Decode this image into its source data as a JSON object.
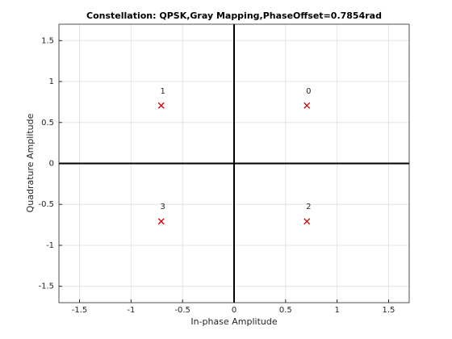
{
  "chart_data": {
    "type": "scatter",
    "title": "Constellation: QPSK,Gray Mapping,PhaseOffset=0.7854rad",
    "x_label": "In-phase Amplitude",
    "y_label": "Quadrature Amplitude",
    "x": [
      0.7071,
      -0.7071,
      0.7071,
      -0.7071
    ],
    "series": [
      {
        "color": "#cc0000",
        "values": [
          0.7071,
          0.7071,
          -0.7071,
          -0.7071
        ]
      }
    ],
    "point_labels": [
      "0",
      "1",
      "2",
      "3"
    ],
    "xlim": [
      -1.7,
      1.7
    ],
    "ylim": [
      -1.7,
      1.7
    ],
    "xticks": [
      -1.5,
      -1,
      -0.5,
      0,
      0.5,
      1,
      1.5
    ],
    "yticks": [
      -1.5,
      -1,
      -0.5,
      0,
      0.5,
      1,
      1.5
    ],
    "grid": true
  }
}
